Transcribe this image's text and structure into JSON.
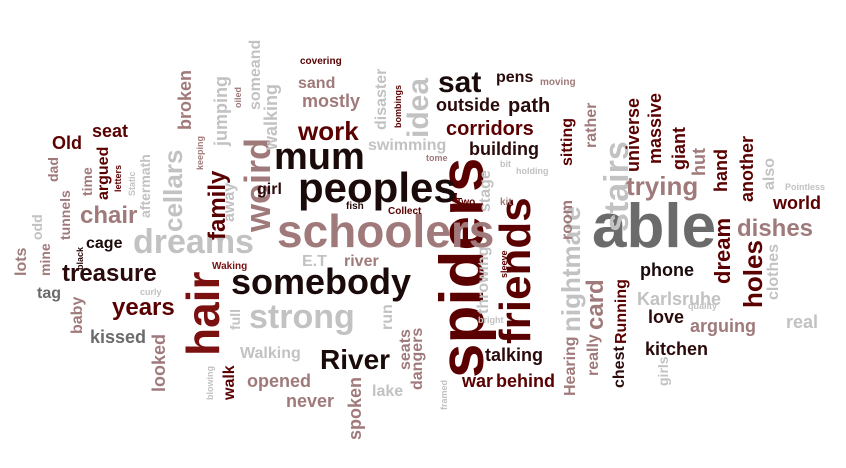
{
  "word_cloud": {
    "words": [
      "able",
      "spiders",
      "schoolers",
      "friends",
      "peoples",
      "hair",
      "somebody",
      "weird",
      "mum",
      "dreams",
      "strong",
      "treasure",
      "family",
      "chair",
      "cellars",
      "years",
      "River",
      "work",
      "nightmare",
      "stairs",
      "dishes",
      "trying",
      "sat",
      "idea",
      "holes",
      "dream",
      "card",
      "corridors",
      "outside",
      "path",
      "building",
      "universe",
      "massive",
      "giant",
      "hut",
      "hand",
      "another",
      "world",
      "phone",
      "Karlsruhe",
      "arguing",
      "kitchen",
      "love",
      "real",
      "clothes",
      "also",
      "broken",
      "jumping",
      "walking",
      "away",
      "girl",
      "mostly",
      "sand",
      "pens",
      "disaster",
      "swimming",
      "E.T",
      "river",
      "run",
      "seats",
      "dangers",
      "lake",
      "talking",
      "war",
      "behind",
      "Hearing",
      "really",
      "chest",
      "Running",
      "room",
      "rather",
      "sitting",
      "stage",
      "throwing",
      "Old",
      "seat",
      "argued",
      "dad",
      "time",
      "tunnels",
      "odd",
      "mine",
      "lots",
      "tag",
      "baby",
      "kissed",
      "looked",
      "walk",
      "opened",
      "never",
      "spoken",
      "Walking",
      "full",
      "cage",
      "aftermath",
      "someand",
      "covering",
      "moving",
      "oiled",
      "bombings",
      "fish",
      "Collect",
      "Two",
      "kit",
      "holding",
      "bit",
      "tome",
      "sleeve",
      "bright",
      "framed",
      "blowing",
      "curly",
      "Waking",
      "black",
      "Static",
      "letters",
      "keeping",
      "quality",
      "Pointless",
      "girls"
    ]
  }
}
